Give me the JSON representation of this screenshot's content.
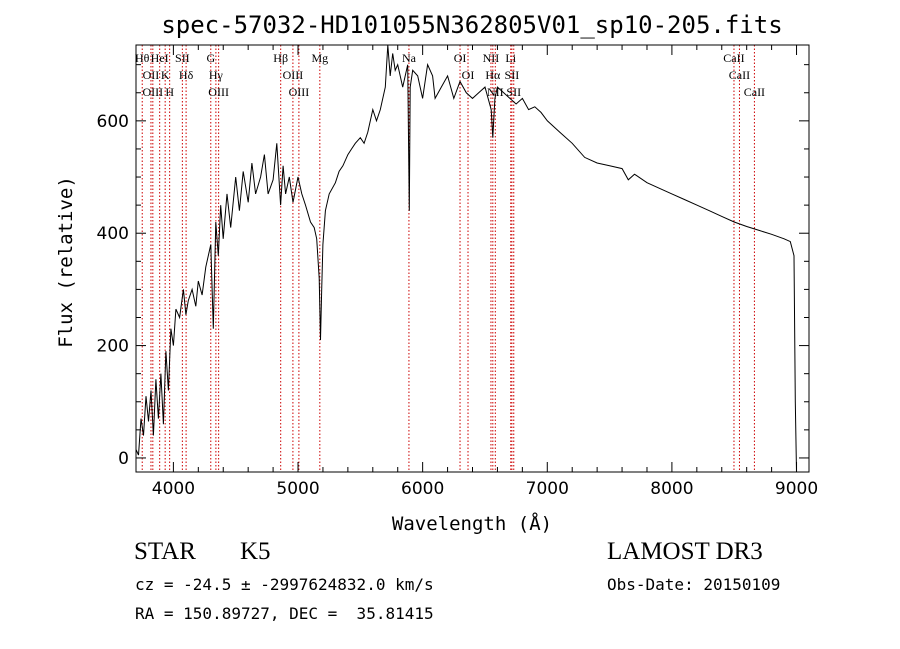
{
  "chart_data": {
    "type": "line",
    "title": "spec-57032-HD101055N362805V01_sp10-205.fits",
    "xlabel": "Wavelength (Å)",
    "ylabel": "Flux (relative)",
    "xlim": [
      3700,
      9100
    ],
    "ylim": [
      -25,
      735
    ],
    "xticks": [
      4000,
      5000,
      6000,
      7000,
      8000,
      9000
    ],
    "yticks": [
      0,
      200,
      400,
      600
    ],
    "grid": false,
    "series": [
      {
        "x": [
          3700,
          3720,
          3740,
          3760,
          3780,
          3800,
          3820,
          3840,
          3860,
          3880,
          3900,
          3920,
          3940,
          3960,
          3980,
          4000,
          4020,
          4050,
          4080,
          4100,
          4120,
          4150,
          4180,
          4200,
          4230,
          4260,
          4300,
          4320,
          4340,
          4360,
          4380,
          4400,
          4430,
          4460,
          4500,
          4530,
          4560,
          4600,
          4630,
          4660,
          4700,
          4730,
          4760,
          4800,
          4830,
          4860,
          4880,
          4900,
          4930,
          4960,
          5000,
          5030,
          5060,
          5100,
          5130,
          5150,
          5170,
          5180,
          5190,
          5200,
          5220,
          5250,
          5300,
          5330,
          5360,
          5400,
          5430,
          5460,
          5500,
          5530,
          5560,
          5600,
          5630,
          5660,
          5700,
          5720,
          5740,
          5760,
          5780,
          5800,
          5840,
          5880,
          5893,
          5900,
          5920,
          5960,
          6000,
          6040,
          6080,
          6100,
          6150,
          6200,
          6250,
          6300,
          6350,
          6400,
          6450,
          6500,
          6550,
          6563,
          6580,
          6600,
          6650,
          6700,
          6750,
          6800,
          6850,
          6900,
          6950,
          7000,
          7100,
          7200,
          7300,
          7400,
          7500,
          7600,
          7650,
          7700,
          7800,
          7900,
          8000,
          8100,
          8200,
          8300,
          8400,
          8500,
          8600,
          8700,
          8800,
          8900,
          8950,
          8980,
          8990,
          9000
        ],
        "y": [
          15,
          5,
          70,
          40,
          110,
          65,
          120,
          40,
          140,
          70,
          150,
          60,
          190,
          120,
          230,
          200,
          265,
          250,
          300,
          255,
          280,
          300,
          270,
          315,
          290,
          340,
          380,
          230,
          420,
          360,
          450,
          390,
          470,
          410,
          500,
          440,
          510,
          455,
          525,
          470,
          500,
          540,
          470,
          495,
          560,
          450,
          520,
          470,
          500,
          455,
          500,
          470,
          450,
          420,
          410,
          390,
          320,
          210,
          300,
          380,
          440,
          470,
          490,
          510,
          520,
          540,
          550,
          560,
          570,
          560,
          580,
          620,
          600,
          620,
          660,
          740,
          680,
          720,
          690,
          700,
          660,
          700,
          440,
          660,
          690,
          680,
          640,
          700,
          680,
          640,
          660,
          680,
          640,
          670,
          650,
          640,
          650,
          660,
          620,
          570,
          640,
          660,
          650,
          640,
          630,
          640,
          620,
          625,
          615,
          600,
          580,
          560,
          535,
          525,
          520,
          515,
          495,
          505,
          490,
          480,
          470,
          460,
          450,
          440,
          430,
          420,
          412,
          405,
          398,
          390,
          385,
          360,
          100,
          -25
        ]
      }
    ],
    "lines": [
      {
        "x": 3750,
        "label": "Hθ"
      },
      {
        "x": 3820,
        "label": "OII"
      },
      {
        "x": 3835,
        "label": "OIII"
      },
      {
        "x": 3890,
        "label": "HeI"
      },
      {
        "x": 3934,
        "label": "K"
      },
      {
        "x": 3970,
        "label": "H"
      },
      {
        "x": 4072,
        "label": "SII"
      },
      {
        "x": 4102,
        "label": "Hδ"
      },
      {
        "x": 4300,
        "label": "G"
      },
      {
        "x": 4341,
        "label": "Hγ"
      },
      {
        "x": 4363,
        "label": "OIII"
      },
      {
        "x": 4861,
        "label": "Hβ"
      },
      {
        "x": 4959,
        "label": "OIII"
      },
      {
        "x": 5007,
        "label": "OIII"
      },
      {
        "x": 5175,
        "label": "Mg"
      },
      {
        "x": 5890,
        "label": "Na"
      },
      {
        "x": 6300,
        "label": "OI"
      },
      {
        "x": 6364,
        "label": "OI"
      },
      {
        "x": 6548,
        "label": "NII"
      },
      {
        "x": 6563,
        "label": "Hα"
      },
      {
        "x": 6583,
        "label": "NII"
      },
      {
        "x": 6707,
        "label": "Li"
      },
      {
        "x": 6716,
        "label": "SII"
      },
      {
        "x": 6731,
        "label": "SII"
      },
      {
        "x": 8498,
        "label": "CaII"
      },
      {
        "x": 8542,
        "label": "CaII"
      },
      {
        "x": 8662,
        "label": "CaII"
      }
    ],
    "line_color": "#000000",
    "marker_line_color": "#cc0000"
  },
  "info": {
    "object_class": "STAR",
    "subclass": "K5",
    "survey": "LAMOST DR3",
    "cz": "cz = -24.5 ± -2997624832.0 km/s",
    "obs_date": "Obs-Date: 20150109",
    "radec": "RA = 150.89727, DEC =  35.81415"
  }
}
